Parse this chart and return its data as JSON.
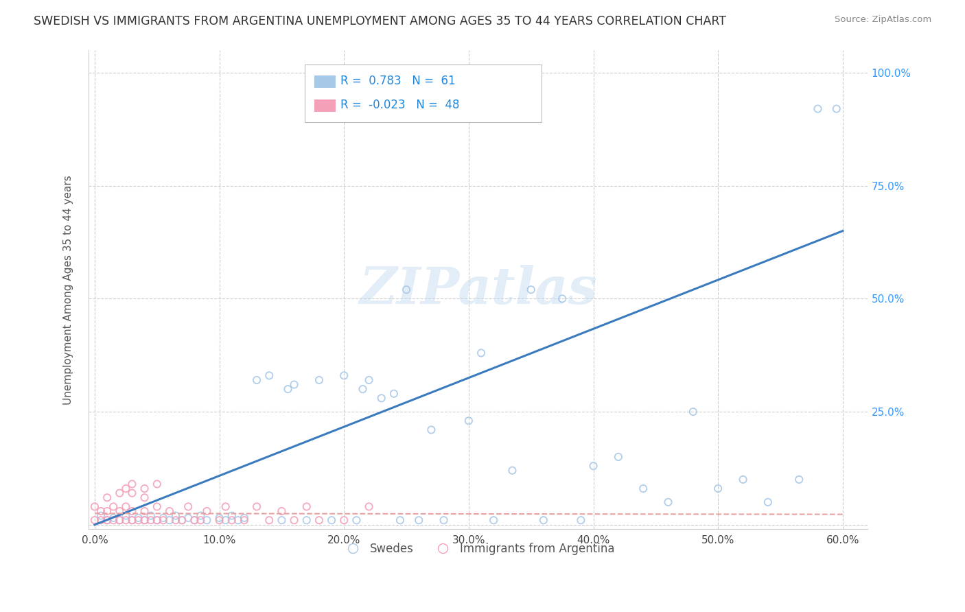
{
  "title": "SWEDISH VS IMMIGRANTS FROM ARGENTINA UNEMPLOYMENT AMONG AGES 35 TO 44 YEARS CORRELATION CHART",
  "source": "Source: ZipAtlas.com",
  "ylabel": "Unemployment Among Ages 35 to 44 years",
  "xlim": [
    -0.005,
    0.62
  ],
  "ylim": [
    -0.01,
    1.05
  ],
  "xticks": [
    0.0,
    0.1,
    0.2,
    0.3,
    0.4,
    0.5,
    0.6
  ],
  "xticklabels": [
    "0.0%",
    "10.0%",
    "20.0%",
    "30.0%",
    "40.0%",
    "50.0%",
    "60.0%"
  ],
  "yticks": [
    0.0,
    0.25,
    0.5,
    0.75,
    1.0
  ],
  "yticklabels_right": [
    "",
    "25.0%",
    "50.0%",
    "75.0%",
    "100.0%"
  ],
  "swedes_R": 0.783,
  "swedes_N": 61,
  "argentina_R": -0.023,
  "argentina_N": 48,
  "swedes_color": "#a8c8e8",
  "argentina_color": "#f4a0b8",
  "swedes_line_color": "#3a7bbf",
  "argentina_line_color": "#e8a0a0",
  "legend_swedes": "Swedes",
  "legend_argentina": "Immigrants from Argentina",
  "background_color": "#ffffff",
  "grid_color": "#cccccc",
  "swedes_x": [
    0.005,
    0.01,
    0.015,
    0.02,
    0.025,
    0.03,
    0.035,
    0.04,
    0.045,
    0.05,
    0.055,
    0.06,
    0.065,
    0.07,
    0.075,
    0.08,
    0.085,
    0.09,
    0.1,
    0.105,
    0.11,
    0.115,
    0.12,
    0.13,
    0.14,
    0.15,
    0.155,
    0.16,
    0.17,
    0.18,
    0.19,
    0.2,
    0.21,
    0.215,
    0.22,
    0.23,
    0.24,
    0.245,
    0.25,
    0.26,
    0.27,
    0.28,
    0.3,
    0.31,
    0.32,
    0.335,
    0.35,
    0.36,
    0.375,
    0.39,
    0.4,
    0.42,
    0.44,
    0.46,
    0.48,
    0.5,
    0.52,
    0.54,
    0.565,
    0.58,
    0.595
  ],
  "swedes_y": [
    0.02,
    0.01,
    0.015,
    0.01,
    0.02,
    0.01,
    0.015,
    0.01,
    0.02,
    0.01,
    0.015,
    0.01,
    0.02,
    0.01,
    0.015,
    0.01,
    0.02,
    0.01,
    0.015,
    0.01,
    0.02,
    0.01,
    0.015,
    0.32,
    0.33,
    0.01,
    0.3,
    0.31,
    0.01,
    0.32,
    0.01,
    0.33,
    0.01,
    0.3,
    0.32,
    0.28,
    0.29,
    0.01,
    0.52,
    0.01,
    0.21,
    0.01,
    0.23,
    0.38,
    0.01,
    0.12,
    0.52,
    0.01,
    0.5,
    0.01,
    0.13,
    0.15,
    0.08,
    0.05,
    0.25,
    0.08,
    0.1,
    0.05,
    0.1,
    0.92,
    0.92
  ],
  "argentina_x": [
    0.0,
    0.0,
    0.005,
    0.005,
    0.01,
    0.01,
    0.01,
    0.015,
    0.015,
    0.02,
    0.02,
    0.02,
    0.025,
    0.025,
    0.03,
    0.03,
    0.03,
    0.035,
    0.04,
    0.04,
    0.04,
    0.045,
    0.05,
    0.05,
    0.055,
    0.06,
    0.065,
    0.07,
    0.075,
    0.08,
    0.085,
    0.09,
    0.1,
    0.105,
    0.11,
    0.12,
    0.13,
    0.14,
    0.15,
    0.16,
    0.17,
    0.18,
    0.2,
    0.22,
    0.025,
    0.03,
    0.04,
    0.05
  ],
  "argentina_y": [
    0.01,
    0.04,
    0.01,
    0.03,
    0.01,
    0.03,
    0.06,
    0.01,
    0.04,
    0.01,
    0.03,
    0.07,
    0.01,
    0.04,
    0.01,
    0.03,
    0.07,
    0.01,
    0.01,
    0.03,
    0.06,
    0.01,
    0.01,
    0.04,
    0.01,
    0.03,
    0.01,
    0.01,
    0.04,
    0.01,
    0.01,
    0.03,
    0.01,
    0.04,
    0.01,
    0.01,
    0.04,
    0.01,
    0.03,
    0.01,
    0.04,
    0.01,
    0.01,
    0.04,
    0.08,
    0.09,
    0.08,
    0.09
  ],
  "swedes_line_x": [
    0.0,
    0.6
  ],
  "swedes_line_y": [
    0.0,
    0.65
  ],
  "argentina_line_x": [
    0.0,
    0.6
  ],
  "argentina_line_y": [
    0.025,
    0.023
  ]
}
